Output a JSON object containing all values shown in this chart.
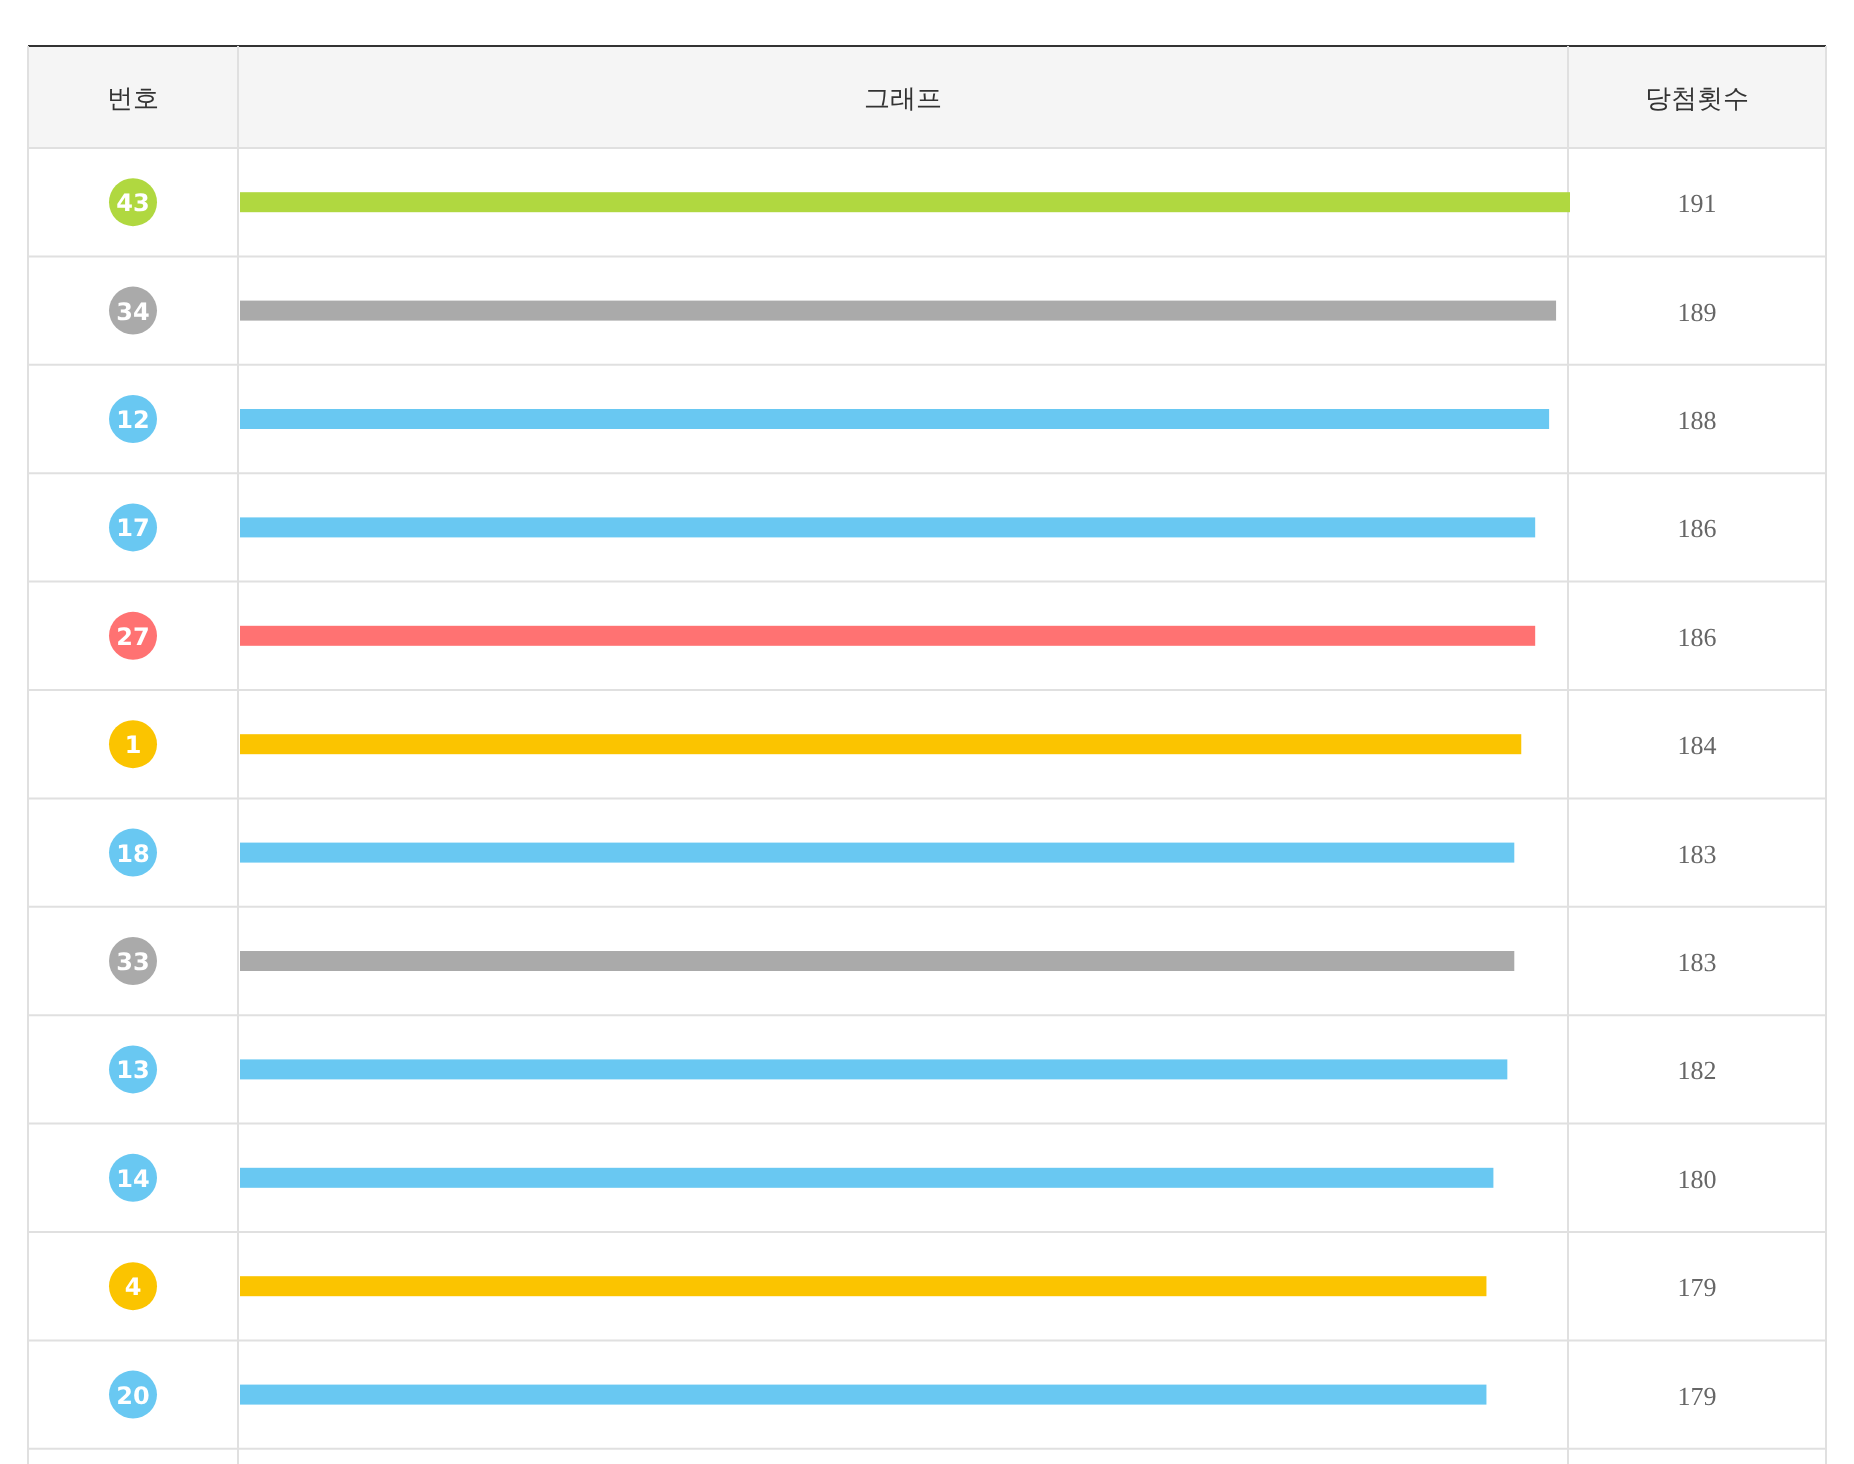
{
  "chart_data": {
    "type": "bar",
    "orientation": "horizontal",
    "data_labels": true,
    "annotations": [
      "번호",
      "그래프",
      "당첨횟수"
    ],
    "categories": [
      "43",
      "34",
      "12",
      "17",
      "27",
      "1",
      "18",
      "33",
      "13",
      "14",
      "4",
      "20"
    ],
    "values": [
      191,
      189,
      188,
      186,
      186,
      184,
      183,
      183,
      182,
      180,
      179,
      179
    ],
    "colors": [
      "#b0d840",
      "#aaaaaa",
      "#69c8f2",
      "#69c8f2",
      "#ff7272",
      "#fbc400",
      "#69c8f2",
      "#aaaaaa",
      "#69c8f2",
      "#69c8f2",
      "#fbc400",
      "#69c8f2"
    ]
  }
}
